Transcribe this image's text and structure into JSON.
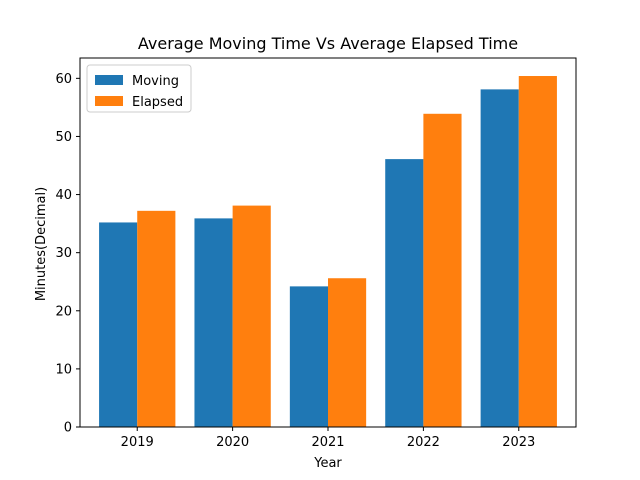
{
  "chart_data": {
    "type": "bar",
    "title": "Average Moving Time Vs Average Elapsed Time",
    "xlabel": "Year",
    "ylabel": "Minutes(Decimal)",
    "categories": [
      "2019",
      "2020",
      "2021",
      "2022",
      "2023"
    ],
    "series": [
      {
        "name": "Moving",
        "color": "#1f77b4",
        "values": [
          35.2,
          35.9,
          24.2,
          46.1,
          58.1
        ]
      },
      {
        "name": "Elapsed",
        "color": "#ff7f0e",
        "values": [
          37.2,
          38.1,
          25.6,
          53.9,
          60.4
        ]
      }
    ],
    "ylim": [
      0,
      63.5
    ],
    "yticks": [
      0,
      10,
      20,
      30,
      40,
      50,
      60
    ],
    "grid": false,
    "legend_position": "top-left"
  }
}
